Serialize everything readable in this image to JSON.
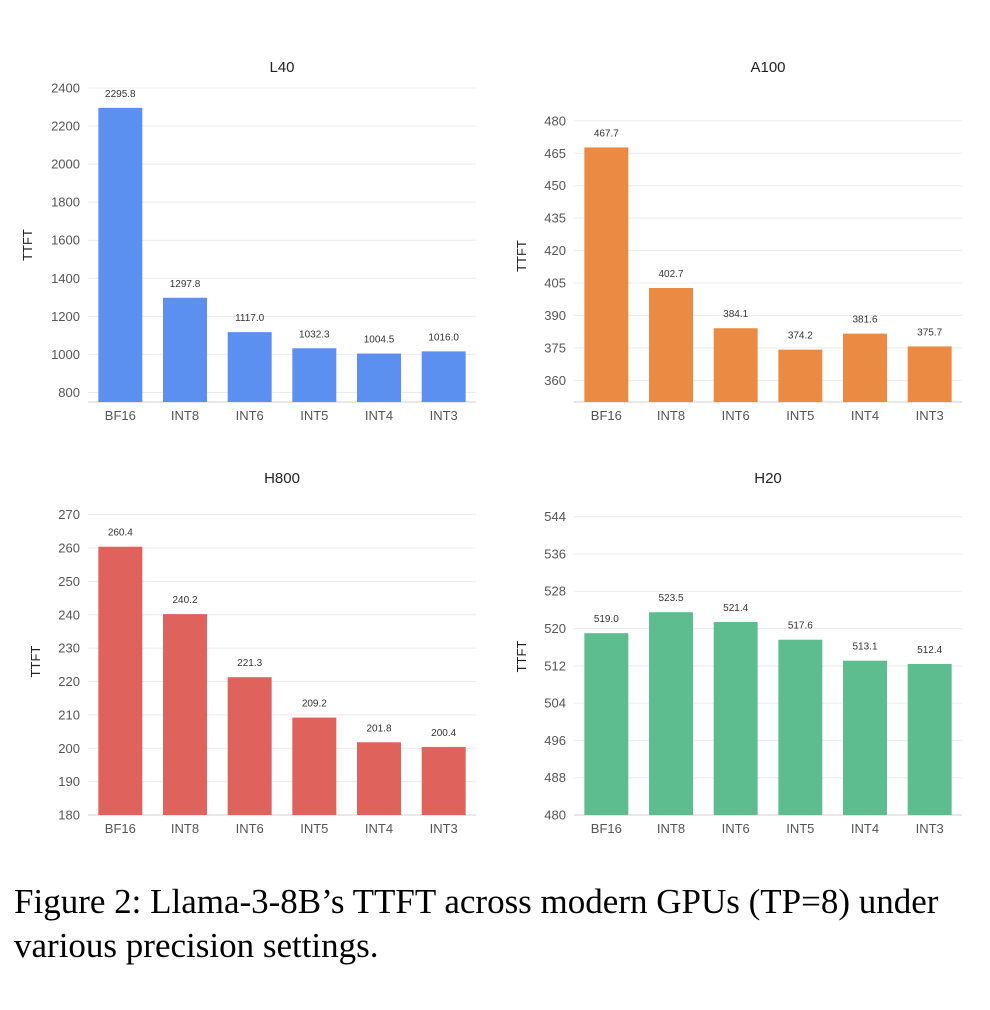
{
  "figure_caption": "Figure 2: Llama-3-8B’s TTFT across modern GPUs (TP=8) under various precision settings.",
  "chart_data": [
    {
      "type": "bar",
      "title": "L40",
      "xlabel": "",
      "ylabel": "TTFT",
      "color": "#5b8ff0",
      "categories": [
        "BF16",
        "INT8",
        "INT6",
        "INT5",
        "INT4",
        "INT3"
      ],
      "values": [
        2295.8,
        1297.8,
        1117.0,
        1032.3,
        1004.5,
        1016.0
      ],
      "value_labels": [
        "2295.8",
        "1297.8",
        "1117.0",
        "1032.3",
        "1004.5",
        "1016.0"
      ],
      "ylim": [
        750,
        2400
      ],
      "yticks": [
        800,
        1000,
        1200,
        1400,
        1600,
        1800,
        2000,
        2200,
        2400
      ],
      "ytick_labels": [
        "800",
        "1000",
        "1200",
        "1400",
        "1600",
        "1800",
        "2000",
        "2200",
        "2400"
      ],
      "grid": true
    },
    {
      "type": "bar",
      "title": "A100",
      "xlabel": "",
      "ylabel": "TTFT",
      "color": "#ea8a43",
      "categories": [
        "BF16",
        "INT8",
        "INT6",
        "INT5",
        "INT4",
        "INT3"
      ],
      "values": [
        467.7,
        402.7,
        384.1,
        374.2,
        381.6,
        375.7
      ],
      "value_labels": [
        "467.7",
        "402.7",
        "384.1",
        "374.2",
        "381.6",
        "375.7"
      ],
      "ylim": [
        350,
        485
      ],
      "yticks": [
        360,
        375,
        390,
        405,
        420,
        435,
        450,
        465,
        480
      ],
      "ytick_labels": [
        "360",
        "375",
        "390",
        "405",
        "420",
        "435",
        "450",
        "465",
        "480"
      ],
      "grid": true
    },
    {
      "type": "bar",
      "title": "H800",
      "xlabel": "",
      "ylabel": "TTFT",
      "color": "#e0625c",
      "categories": [
        "BF16",
        "INT8",
        "INT6",
        "INT5",
        "INT4",
        "INT3"
      ],
      "values": [
        260.4,
        240.2,
        221.3,
        209.2,
        201.8,
        200.4
      ],
      "value_labels": [
        "260.4",
        "240.2",
        "221.3",
        "209.2",
        "201.8",
        "200.4"
      ],
      "ylim": [
        180,
        272
      ],
      "yticks": [
        180,
        190,
        200,
        210,
        220,
        230,
        240,
        250,
        260,
        270
      ],
      "ytick_labels": [
        "180",
        "190",
        "200",
        "210",
        "220",
        "230",
        "240",
        "250",
        "260",
        "270"
      ],
      "grid": true
    },
    {
      "type": "bar",
      "title": "H20",
      "xlabel": "",
      "ylabel": "TTFT",
      "color": "#5dbd8f",
      "categories": [
        "BF16",
        "INT8",
        "INT6",
        "INT5",
        "INT4",
        "INT3"
      ],
      "values": [
        519.0,
        523.5,
        521.4,
        517.6,
        513.1,
        512.4
      ],
      "value_labels": [
        "519.0",
        "523.5",
        "521.4",
        "517.6",
        "513.1",
        "512.4"
      ],
      "ylim": [
        480,
        548
      ],
      "yticks": [
        480,
        488,
        496,
        504,
        512,
        520,
        528,
        536,
        544
      ],
      "ytick_labels": [
        "480",
        "488",
        "496",
        "504",
        "512",
        "520",
        "528",
        "536",
        "544"
      ],
      "grid": true
    }
  ]
}
